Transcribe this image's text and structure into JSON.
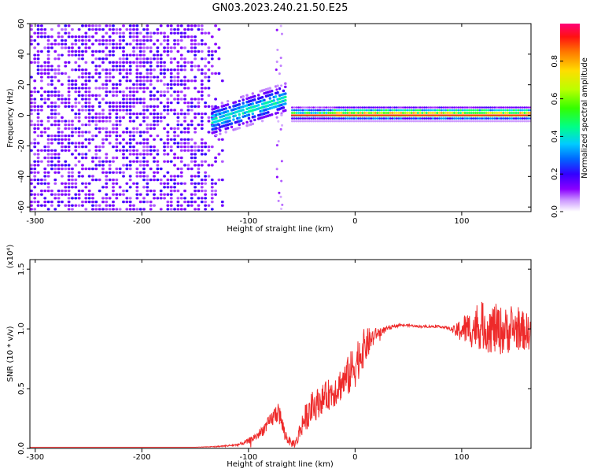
{
  "title": "GN03.2023.240.21.50.E25",
  "chart_data": [
    {
      "type": "heatmap",
      "xlabel": "Height of straight line (km)",
      "ylabel": "Frequency (Hz)",
      "xlim": [
        -305,
        165
      ],
      "ylim": [
        -63,
        60
      ],
      "xticks": [
        -300,
        -200,
        -100,
        0,
        100
      ],
      "yticks": [
        -60,
        -40,
        -20,
        0,
        20,
        40,
        60
      ],
      "colorbar": {
        "label": "Normalized spectral amplitude",
        "range": [
          0,
          1
        ],
        "ticks": [
          "0.0",
          "0.2",
          "0.4",
          "0.6",
          "0.8"
        ],
        "colors": [
          "#ffffff",
          "#8a00ff",
          "#3300ff",
          "#0055ff",
          "#00ccff",
          "#00ff66",
          "#66ff00",
          "#ffee00",
          "#ff8800",
          "#ff2200",
          "#ff0088"
        ]
      },
      "features": [
        {
          "name": "broadband noise",
          "x_range": [
            -305,
            -125
          ],
          "freq_range": [
            -63,
            60
          ],
          "amplitude": 0.15
        },
        {
          "name": "rising streak",
          "x_range": [
            -135,
            -65
          ],
          "freq_start": -5,
          "freq_end": 10,
          "amplitude": 0.35
        },
        {
          "name": "vertical stripe",
          "x": -72,
          "freq_range": [
            -63,
            60
          ],
          "amplitude": 0.1
        },
        {
          "name": "narrowband line",
          "x_range": [
            -60,
            165
          ],
          "freq": 0,
          "amplitude": 0.9
        }
      ]
    },
    {
      "type": "line",
      "xlabel": "Height of straight line (km)",
      "ylabel": "SNR (10 * v/v)",
      "yscale_label": "(x10⁴)",
      "xlim": [
        -305,
        165
      ],
      "ylim": [
        0,
        1.58
      ],
      "xticks": [
        -300,
        -200,
        -100,
        0,
        100
      ],
      "yticks": [
        "0.0",
        "0.5",
        "1.0",
        "1.5"
      ],
      "series": [
        {
          "color": "#ee2a2a",
          "x": [
            -305,
            -250,
            -200,
            -150,
            -130,
            -110,
            -100,
            -90,
            -80,
            -72,
            -66,
            -60,
            -55,
            -50,
            -45,
            -40,
            -30,
            -20,
            -10,
            -5,
            0,
            5,
            10,
            20,
            30,
            40,
            50,
            60,
            70,
            80,
            90,
            95,
            100,
            110,
            120,
            130,
            140,
            150,
            165
          ],
          "y": [
            0.01,
            0.01,
            0.01,
            0.01,
            0.015,
            0.03,
            0.06,
            0.12,
            0.22,
            0.32,
            0.12,
            0.04,
            0.05,
            0.2,
            0.28,
            0.34,
            0.42,
            0.48,
            0.57,
            0.62,
            0.7,
            0.8,
            0.86,
            0.96,
            1.0,
            1.03,
            1.03,
            1.02,
            1.02,
            1.02,
            1.0,
            0.98,
            1.0,
            1.0,
            1.02,
            1.0,
            0.98,
            1.0,
            0.97
          ],
          "noise": [
            0,
            0,
            0,
            0,
            0.005,
            0.01,
            0.025,
            0.04,
            0.06,
            0.1,
            0.06,
            0.03,
            0.05,
            0.1,
            0.12,
            0.14,
            0.12,
            0.14,
            0.15,
            0.18,
            0.2,
            0.18,
            0.15,
            0.05,
            0.02,
            0.01,
            0.01,
            0.01,
            0.01,
            0.01,
            0.015,
            0.06,
            0.12,
            0.16,
            0.2,
            0.22,
            0.2,
            0.18,
            0.15
          ]
        }
      ]
    }
  ]
}
